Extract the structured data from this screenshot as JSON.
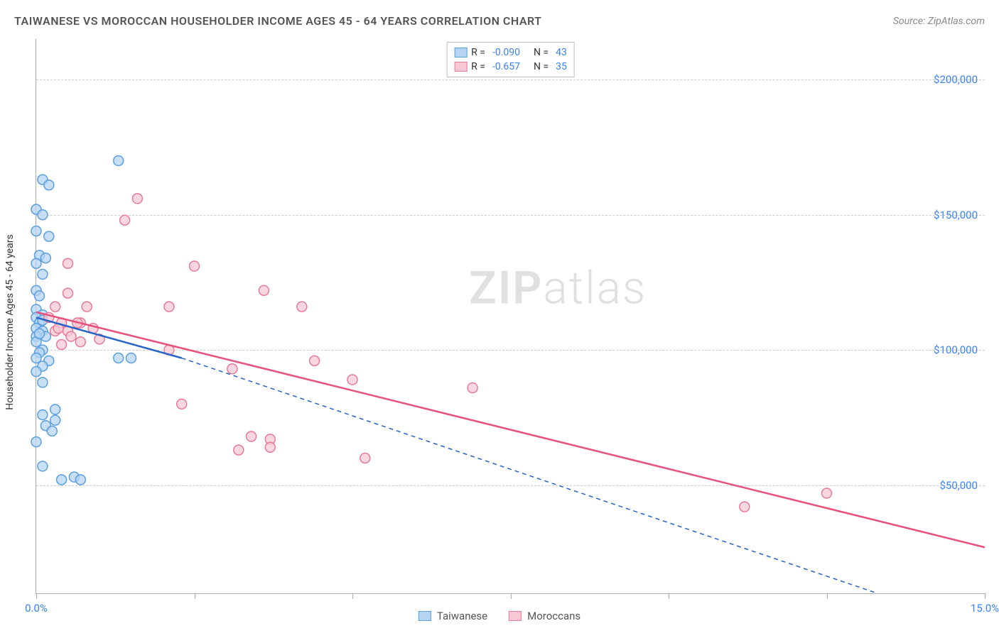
{
  "header": {
    "title": "TAIWANESE VS MOROCCAN HOUSEHOLDER INCOME AGES 45 - 64 YEARS CORRELATION CHART",
    "source": "Source: ZipAtlas.com"
  },
  "watermark": {
    "big": "ZIP",
    "small": "atlas"
  },
  "chart": {
    "type": "scatter",
    "ylabel": "Householder Income Ages 45 - 64 years",
    "xlim": [
      0,
      15
    ],
    "ylim": [
      10000,
      215000
    ],
    "x_ticks": [
      0,
      2.5,
      5,
      7.5,
      10,
      12.5,
      15
    ],
    "x_tick_labels_shown": {
      "0": "0.0%",
      "15": "15.0%"
    },
    "y_ticks": [
      50000,
      100000,
      150000,
      200000
    ],
    "y_tick_labels": [
      "$50,000",
      "$100,000",
      "$150,000",
      "$200,000"
    ],
    "grid_color": "#cccccc",
    "axis_color": "#aaaaaa",
    "background_color": "#ffffff",
    "tick_label_color": "#3b82f6",
    "series": [
      {
        "name": "Taiwanese",
        "marker_fill": "#b6d4f2",
        "marker_stroke": "#5a9fe0",
        "marker_radius": 7,
        "trend_color": "#2563c9",
        "trend_width": 2.5,
        "dash_extension": true,
        "R": "-0.090",
        "N": "43",
        "trend": {
          "x1": 0,
          "y1": 112000,
          "x2": 2.3,
          "y2": 97000,
          "dash_x2": 13.3,
          "dash_y2": 10000
        },
        "points": [
          [
            0.1,
            163000
          ],
          [
            0.2,
            161000
          ],
          [
            0.0,
            152000
          ],
          [
            0.1,
            150000
          ],
          [
            0.0,
            144000
          ],
          [
            0.2,
            142000
          ],
          [
            0.05,
            135000
          ],
          [
            0.15,
            134000
          ],
          [
            0.0,
            132000
          ],
          [
            0.1,
            128000
          ],
          [
            0.0,
            122000
          ],
          [
            0.05,
            120000
          ],
          [
            0.0,
            115000
          ],
          [
            0.1,
            113000
          ],
          [
            0.0,
            112000
          ],
          [
            0.05,
            110000
          ],
          [
            0.0,
            108000
          ],
          [
            0.1,
            107000
          ],
          [
            0.0,
            105000
          ],
          [
            0.15,
            105000
          ],
          [
            0.0,
            103000
          ],
          [
            0.1,
            100000
          ],
          [
            0.05,
            99000
          ],
          [
            0.0,
            97000
          ],
          [
            0.2,
            96000
          ],
          [
            0.1,
            94000
          ],
          [
            0.0,
            92000
          ],
          [
            0.1,
            88000
          ],
          [
            0.3,
            78000
          ],
          [
            0.1,
            76000
          ],
          [
            0.3,
            74000
          ],
          [
            0.15,
            72000
          ],
          [
            0.25,
            70000
          ],
          [
            0.0,
            66000
          ],
          [
            0.1,
            57000
          ],
          [
            0.6,
            53000
          ],
          [
            0.4,
            52000
          ],
          [
            0.7,
            52000
          ],
          [
            1.3,
            170000
          ],
          [
            1.5,
            97000
          ],
          [
            1.3,
            97000
          ],
          [
            0.05,
            106000
          ],
          [
            0.1,
            111000
          ]
        ]
      },
      {
        "name": "Moroccans",
        "marker_fill": "#f7c9d4",
        "marker_stroke": "#e67a99",
        "marker_radius": 7,
        "trend_color": "#e8517b",
        "trend_width": 2.5,
        "dash_extension": false,
        "R": "-0.657",
        "N": "35",
        "trend": {
          "x1": 0,
          "y1": 114000,
          "x2": 15,
          "y2": 27000
        },
        "points": [
          [
            1.6,
            156000
          ],
          [
            1.4,
            148000
          ],
          [
            0.5,
            132000
          ],
          [
            2.5,
            131000
          ],
          [
            0.5,
            121000
          ],
          [
            3.6,
            122000
          ],
          [
            0.3,
            116000
          ],
          [
            0.8,
            116000
          ],
          [
            2.1,
            116000
          ],
          [
            4.2,
            116000
          ],
          [
            0.4,
            110000
          ],
          [
            0.7,
            110000
          ],
          [
            0.9,
            108000
          ],
          [
            0.3,
            107000
          ],
          [
            0.5,
            107000
          ],
          [
            2.1,
            100000
          ],
          [
            0.4,
            102000
          ],
          [
            4.4,
            96000
          ],
          [
            3.1,
            93000
          ],
          [
            5.0,
            89000
          ],
          [
            0.65,
            110000
          ],
          [
            6.9,
            86000
          ],
          [
            2.3,
            80000
          ],
          [
            3.7,
            67000
          ],
          [
            3.4,
            68000
          ],
          [
            3.2,
            63000
          ],
          [
            3.7,
            64000
          ],
          [
            5.2,
            60000
          ],
          [
            11.2,
            42000
          ],
          [
            12.5,
            47000
          ],
          [
            0.35,
            108000
          ],
          [
            0.55,
            105000
          ],
          [
            0.7,
            103000
          ],
          [
            0.2,
            112000
          ],
          [
            1.0,
            104000
          ]
        ]
      }
    ]
  },
  "legend_top": {
    "r_label": "R =",
    "n_label": "N ="
  },
  "legend_bottom": [
    {
      "label": "Taiwanese",
      "fill": "#b6d4f2",
      "stroke": "#5a9fe0"
    },
    {
      "label": "Moroccans",
      "fill": "#f7c9d4",
      "stroke": "#e67a99"
    }
  ]
}
